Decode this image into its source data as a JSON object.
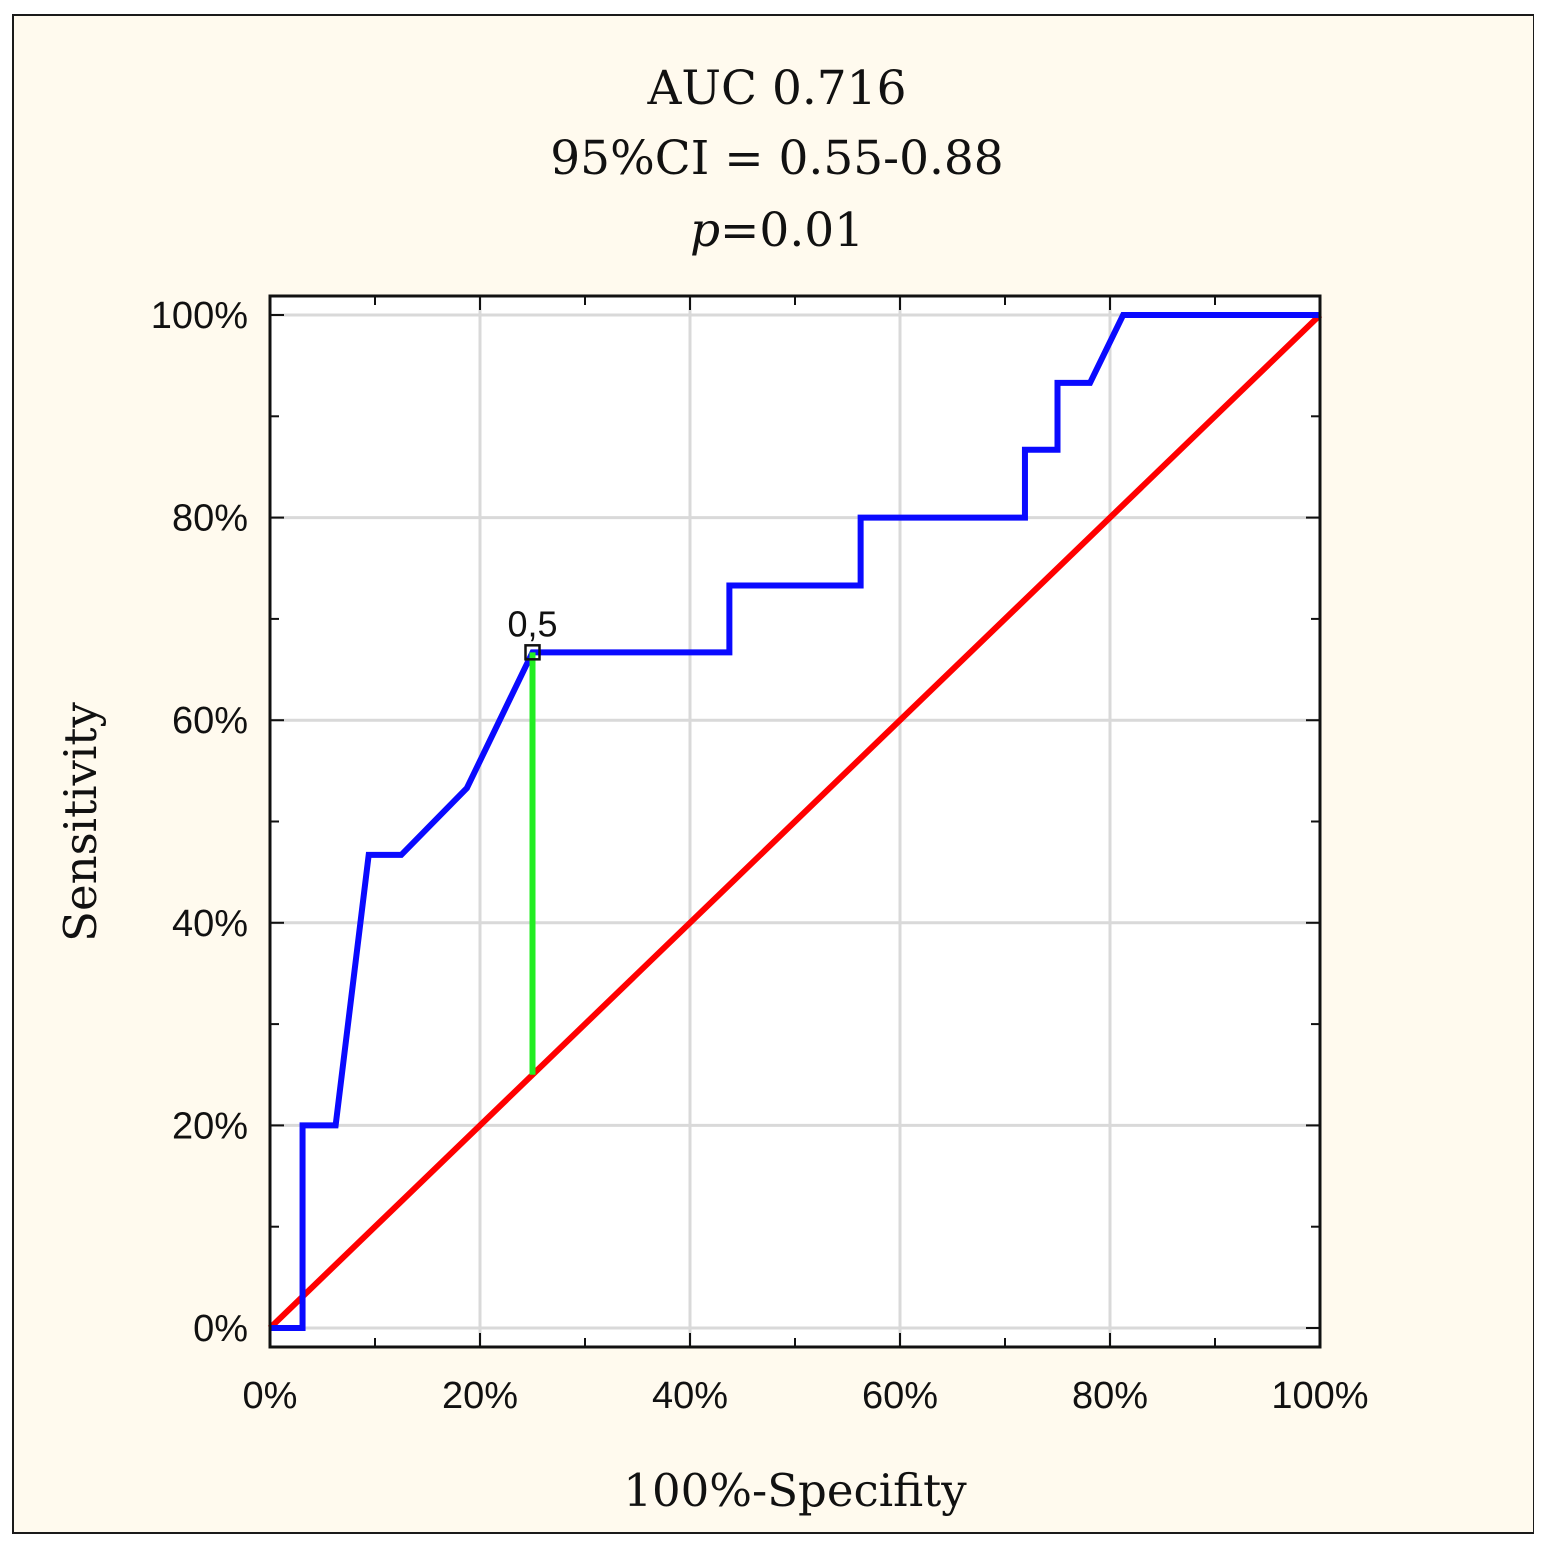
{
  "colors": {
    "background": "#fffaee",
    "roc_curve": "#0a0aff",
    "reference_line": "#ff0000",
    "cutoff_line": "#22ee22",
    "grid": "#d9d9d9",
    "axis": "#111111"
  },
  "chart_data": {
    "type": "line",
    "title_lines": [
      "AUC 0.716",
      "95%CI = 0.55-0.88",
      "=0.01"
    ],
    "title_p_symbol": "p",
    "xlabel": "100%-Specifity",
    "ylabel": "Sensitivity",
    "xlim": [
      0,
      100
    ],
    "ylim": [
      0,
      100
    ],
    "x_ticks": [
      "0%",
      "20%",
      "40%",
      "60%",
      "80%",
      "100%"
    ],
    "y_ticks": [
      "0%",
      "20%",
      "40%",
      "60%",
      "80%",
      "100%"
    ],
    "grid": true,
    "series": [
      {
        "role": "roc",
        "color": "#0a0aff",
        "x": [
          0,
          3.1,
          3.1,
          6.25,
          9.4,
          12.5,
          18.75,
          25,
          43.75,
          43.75,
          56.25,
          56.25,
          71.9,
          71.9,
          75,
          75,
          78.1,
          81.25,
          100
        ],
        "y": [
          0,
          0,
          20,
          20,
          46.7,
          46.7,
          53.3,
          66.7,
          66.7,
          73.3,
          73.3,
          80,
          80,
          86.7,
          86.7,
          93.3,
          93.3,
          100,
          100
        ]
      },
      {
        "role": "reference",
        "color": "#ff0000",
        "x": [
          0,
          100
        ],
        "y": [
          0,
          100
        ]
      },
      {
        "role": "cutoff",
        "color": "#22ee22",
        "x": [
          25,
          25
        ],
        "y": [
          25,
          66.7
        ]
      }
    ],
    "annotations": [
      {
        "text": "0,5",
        "x": 25,
        "y": 66.7
      }
    ]
  }
}
